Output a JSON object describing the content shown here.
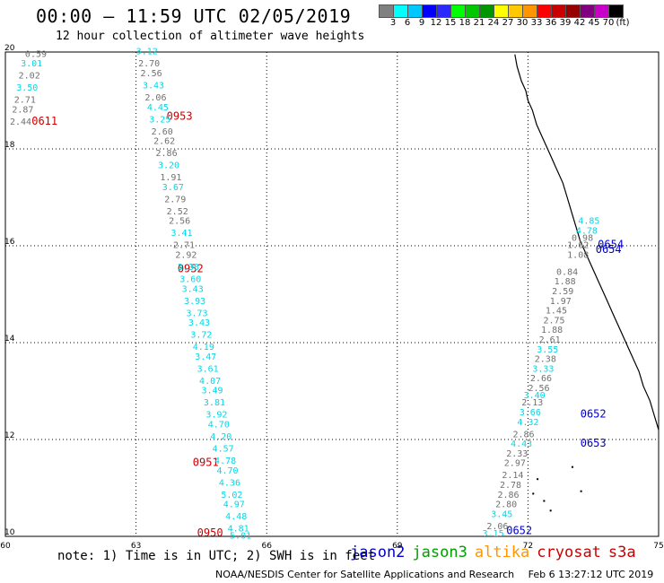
{
  "header": {
    "title": "00:00 – 11:59 UTC 02/05/2019",
    "subtitle": "12 hour collection of altimeter wave heights"
  },
  "colorbar": {
    "colors": [
      "#808080",
      "#00ffff",
      "#00c8ff",
      "#0000ff",
      "#2a2aff",
      "#00ff00",
      "#00c800",
      "#009600",
      "#ffff00",
      "#ffc800",
      "#ff9600",
      "#ff0000",
      "#c80000",
      "#960000",
      "#800080",
      "#c800c8",
      "#000000"
    ],
    "labels": [
      "3",
      "6",
      "9",
      "12",
      "15",
      "18",
      "21",
      "24",
      "27",
      "30",
      "33",
      "36",
      "39",
      "42",
      "45",
      "70",
      "(ft)"
    ]
  },
  "chart_data": {
    "type": "scatter",
    "xlim": [
      60,
      75
    ],
    "ylim": [
      10,
      20
    ],
    "x_ticks": [
      "60",
      "63",
      "66",
      "69",
      "72",
      "75"
    ],
    "y_ticks": [
      "20",
      "18",
      "16",
      "14",
      "12",
      "10"
    ],
    "grid": true,
    "series": [
      {
        "name": "jason2",
        "color": "#0000cc",
        "points": [
          {
            "x": 71.8,
            "y": 10.05,
            "label": "0652"
          },
          {
            "x": 73.5,
            "y": 11.85,
            "label": "0653"
          },
          {
            "x": 73.5,
            "y": 12.45,
            "label": "0652"
          },
          {
            "x": 73.9,
            "y": 15.95,
            "label": "0654"
          },
          {
            "x": 73.85,
            "y": 15.85,
            "label": "0654"
          }
        ]
      },
      {
        "name": "cryosat",
        "color": "#cc0000",
        "points": [
          {
            "x": 60.9,
            "y": 18.5,
            "label": "0611"
          },
          {
            "x": 64.0,
            "y": 18.6,
            "label": "0953"
          },
          {
            "x": 64.25,
            "y": 15.45,
            "label": "0952"
          },
          {
            "x": 64.6,
            "y": 11.45,
            "label": "0951"
          },
          {
            "x": 64.7,
            "y": 10.0,
            "label": "0950"
          }
        ]
      },
      {
        "name": "obs_swh",
        "color": "#808080",
        "points": [
          {
            "x": 60.7,
            "y": 19.9,
            "label": "0.59",
            "cat": "3"
          },
          {
            "x": 60.6,
            "y": 19.7,
            "label": "3.01",
            "cat": "6"
          },
          {
            "x": 60.55,
            "y": 19.45,
            "label": "2.02",
            "cat": "3"
          },
          {
            "x": 60.5,
            "y": 19.2,
            "label": "3.50",
            "cat": "6"
          },
          {
            "x": 60.45,
            "y": 18.95,
            "label": "2.71",
            "cat": "3"
          },
          {
            "x": 60.4,
            "y": 18.75,
            "label": "2.87",
            "cat": "3"
          },
          {
            "x": 60.35,
            "y": 18.5,
            "label": "2.44",
            "cat": "3"
          },
          {
            "x": 63.25,
            "y": 19.95,
            "label": "3.12",
            "cat": "6"
          },
          {
            "x": 63.3,
            "y": 19.7,
            "label": "2.70",
            "cat": "3"
          },
          {
            "x": 63.35,
            "y": 19.5,
            "label": "2.56",
            "cat": "3"
          },
          {
            "x": 63.4,
            "y": 19.25,
            "label": "3.43",
            "cat": "6"
          },
          {
            "x": 63.45,
            "y": 19.0,
            "label": "2.06",
            "cat": "3"
          },
          {
            "x": 63.5,
            "y": 18.8,
            "label": "4.45",
            "cat": "6"
          },
          {
            "x": 63.55,
            "y": 18.55,
            "label": "3.25",
            "cat": "6"
          },
          {
            "x": 63.6,
            "y": 18.3,
            "label": "2.60",
            "cat": "3"
          },
          {
            "x": 63.65,
            "y": 18.1,
            "label": "2.62",
            "cat": "3"
          },
          {
            "x": 63.7,
            "y": 17.85,
            "label": "2.86",
            "cat": "3"
          },
          {
            "x": 63.75,
            "y": 17.6,
            "label": "3.20",
            "cat": "6"
          },
          {
            "x": 63.8,
            "y": 17.35,
            "label": "1.91",
            "cat": "3"
          },
          {
            "x": 63.85,
            "y": 17.15,
            "label": "3.67",
            "cat": "6"
          },
          {
            "x": 63.9,
            "y": 16.9,
            "label": "2.79",
            "cat": "3"
          },
          {
            "x": 63.95,
            "y": 16.65,
            "label": "2.52",
            "cat": "3"
          },
          {
            "x": 64.0,
            "y": 16.45,
            "label": "2.56",
            "cat": "3"
          },
          {
            "x": 64.05,
            "y": 16.2,
            "label": "3.41",
            "cat": "6"
          },
          {
            "x": 64.1,
            "y": 15.95,
            "label": "2.71",
            "cat": "3"
          },
          {
            "x": 64.15,
            "y": 15.75,
            "label": "2.92",
            "cat": "3"
          },
          {
            "x": 64.2,
            "y": 15.5,
            "label": "3.38",
            "cat": "6"
          },
          {
            "x": 64.25,
            "y": 15.25,
            "label": "3.60",
            "cat": "6"
          },
          {
            "x": 64.3,
            "y": 15.05,
            "label": "3.43",
            "cat": "6"
          },
          {
            "x": 64.35,
            "y": 14.8,
            "label": "3.93",
            "cat": "6"
          },
          {
            "x": 64.4,
            "y": 14.55,
            "label": "3.73",
            "cat": "6"
          },
          {
            "x": 64.45,
            "y": 14.35,
            "label": "3.43",
            "cat": "6"
          },
          {
            "x": 64.5,
            "y": 14.1,
            "label": "3.72",
            "cat": "6"
          },
          {
            "x": 64.55,
            "y": 13.85,
            "label": "4.19",
            "cat": "6"
          },
          {
            "x": 64.6,
            "y": 13.65,
            "label": "3.47",
            "cat": "6"
          },
          {
            "x": 64.65,
            "y": 13.4,
            "label": "3.61",
            "cat": "6"
          },
          {
            "x": 64.7,
            "y": 13.15,
            "label": "4.07",
            "cat": "6"
          },
          {
            "x": 64.75,
            "y": 12.95,
            "label": "3.49",
            "cat": "6"
          },
          {
            "x": 64.8,
            "y": 12.7,
            "label": "3.81",
            "cat": "6"
          },
          {
            "x": 64.85,
            "y": 12.45,
            "label": "3.92",
            "cat": "6"
          },
          {
            "x": 64.9,
            "y": 12.25,
            "label": "4.70",
            "cat": "6"
          },
          {
            "x": 64.95,
            "y": 12.0,
            "label": "4.20",
            "cat": "6"
          },
          {
            "x": 65.0,
            "y": 11.75,
            "label": "4.57",
            "cat": "6"
          },
          {
            "x": 65.05,
            "y": 11.5,
            "label": "4.78",
            "cat": "6"
          },
          {
            "x": 65.1,
            "y": 11.3,
            "label": "4.70",
            "cat": "6"
          },
          {
            "x": 65.15,
            "y": 11.05,
            "label": "4.36",
            "cat": "6"
          },
          {
            "x": 65.2,
            "y": 10.8,
            "label": "5.02",
            "cat": "6"
          },
          {
            "x": 65.25,
            "y": 10.6,
            "label": "4.97",
            "cat": "6"
          },
          {
            "x": 65.3,
            "y": 10.35,
            "label": "4.48",
            "cat": "6"
          },
          {
            "x": 65.35,
            "y": 10.1,
            "label": "4.81",
            "cat": "6"
          },
          {
            "x": 65.4,
            "y": 9.95,
            "label": "5.01",
            "cat": "6"
          },
          {
            "x": 71.2,
            "y": 10.0,
            "label": "3.15",
            "cat": "6"
          },
          {
            "x": 71.3,
            "y": 10.15,
            "label": "2.06",
            "cat": "3"
          },
          {
            "x": 71.4,
            "y": 10.4,
            "label": "3.45",
            "cat": "6"
          },
          {
            "x": 71.5,
            "y": 10.6,
            "label": "2.80",
            "cat": "3"
          },
          {
            "x": 71.55,
            "y": 10.8,
            "label": "2.86",
            "cat": "3"
          },
          {
            "x": 71.6,
            "y": 11.0,
            "label": "2.78",
            "cat": "3"
          },
          {
            "x": 71.65,
            "y": 11.2,
            "label": "2.14",
            "cat": "3"
          },
          {
            "x": 71.7,
            "y": 11.45,
            "label": "2.97",
            "cat": "3"
          },
          {
            "x": 71.75,
            "y": 11.65,
            "label": "2.33",
            "cat": "3"
          },
          {
            "x": 71.85,
            "y": 11.85,
            "label": "4.43",
            "cat": "6"
          },
          {
            "x": 71.9,
            "y": 12.05,
            "label": "2.86",
            "cat": "3"
          },
          {
            "x": 72.0,
            "y": 12.3,
            "label": "4.32",
            "cat": "6"
          },
          {
            "x": 72.05,
            "y": 12.5,
            "label": "3.66",
            "cat": "6"
          },
          {
            "x": 72.1,
            "y": 12.7,
            "label": "2.13",
            "cat": "3"
          },
          {
            "x": 72.15,
            "y": 12.85,
            "label": "3.40",
            "cat": "6"
          },
          {
            "x": 72.25,
            "y": 13.0,
            "label": "2.56",
            "cat": "3"
          },
          {
            "x": 72.3,
            "y": 13.2,
            "label": "2.66",
            "cat": "3"
          },
          {
            "x": 72.35,
            "y": 13.4,
            "label": "3.33",
            "cat": "6"
          },
          {
            "x": 72.4,
            "y": 13.6,
            "label": "2.38",
            "cat": "3"
          },
          {
            "x": 72.45,
            "y": 13.8,
            "label": "3.55",
            "cat": "6"
          },
          {
            "x": 72.5,
            "y": 14.0,
            "label": "2.61",
            "cat": "3"
          },
          {
            "x": 72.55,
            "y": 14.2,
            "label": "1.88",
            "cat": "3"
          },
          {
            "x": 72.6,
            "y": 14.4,
            "label": "2.75",
            "cat": "3"
          },
          {
            "x": 72.65,
            "y": 14.6,
            "label": "1.45",
            "cat": "3"
          },
          {
            "x": 72.75,
            "y": 14.8,
            "label": "1.97",
            "cat": "3"
          },
          {
            "x": 72.8,
            "y": 15.0,
            "label": "2.59",
            "cat": "3"
          },
          {
            "x": 72.85,
            "y": 15.2,
            "label": "1.88",
            "cat": "3"
          },
          {
            "x": 72.9,
            "y": 15.4,
            "label": "0.84",
            "cat": "3"
          },
          {
            "x": 73.15,
            "y": 15.75,
            "label": "1.08",
            "cat": "3"
          },
          {
            "x": 73.15,
            "y": 15.95,
            "label": "1.62",
            "cat": "3"
          },
          {
            "x": 73.25,
            "y": 16.1,
            "label": "0.98",
            "cat": "3"
          },
          {
            "x": 73.35,
            "y": 16.25,
            "label": "4.78",
            "cat": "6"
          },
          {
            "x": 73.4,
            "y": 16.45,
            "label": "4.85",
            "cat": "6"
          }
        ]
      }
    ]
  },
  "legend": {
    "items": [
      {
        "name": "jason2",
        "color": "#0000cc"
      },
      {
        "name": "jason3",
        "color": "#00a000"
      },
      {
        "name": "altika",
        "color": "#ff9600"
      },
      {
        "name": "cryosat",
        "color": "#cc0000"
      },
      {
        "name": "s3a",
        "color": "#cc0000"
      }
    ]
  },
  "note": "note: 1) Time is in UTC; 2) SWH is in feet",
  "footer": {
    "credit": "NOAA/NESDIS Center for Satellite Applications and Research",
    "timestamp": "Feb  6 13:27:12 UTC 2019"
  }
}
